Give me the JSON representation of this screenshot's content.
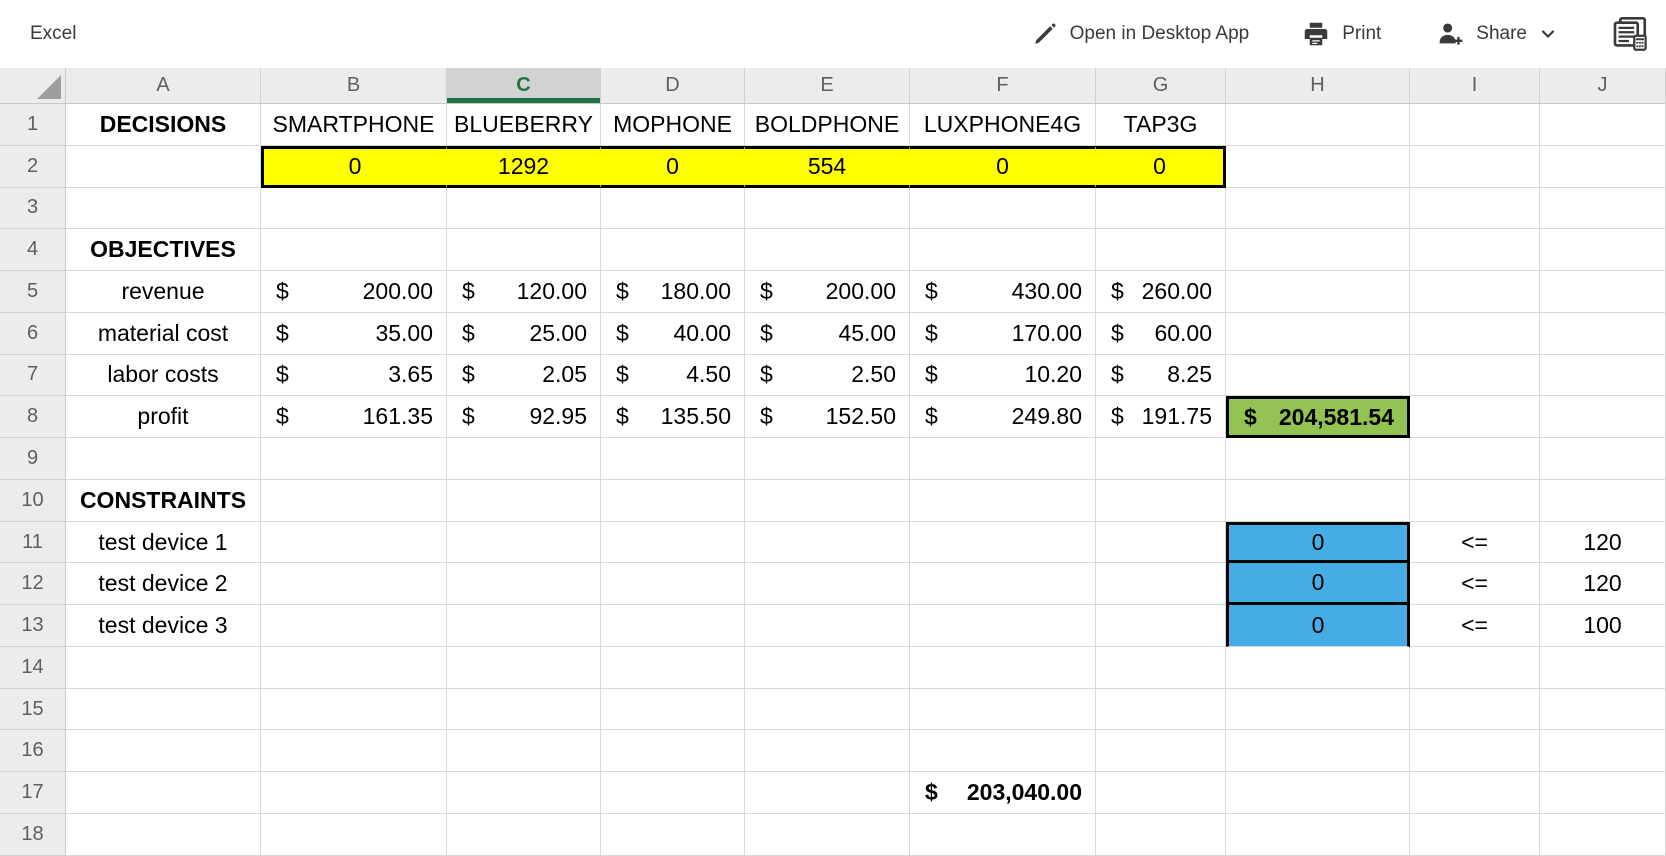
{
  "app": {
    "title": "Excel",
    "actions": {
      "open_desktop": "Open in Desktop App",
      "print": "Print",
      "share": "Share"
    }
  },
  "colors": {
    "yellow_fill": "#ffff00",
    "green_fill": "#92c353",
    "blue_fill": "#45ace5",
    "accent_green": "#217346",
    "grid_line": "#d9d9d9",
    "header_bg": "#ececec",
    "header_selected_bg": "#d2d2d2",
    "header_text": "#5f5f5f",
    "cell_text": "#000000",
    "topbar_text": "#3a3a3a"
  },
  "grid": {
    "column_headers": [
      "A",
      "B",
      "C",
      "D",
      "E",
      "F",
      "G",
      "H",
      "I",
      "J"
    ],
    "selected_column": "C",
    "row_headers": [
      "1",
      "2",
      "3",
      "4",
      "5",
      "6",
      "7",
      "8",
      "9",
      "10",
      "11",
      "12",
      "13",
      "14",
      "15",
      "16",
      "17",
      "18"
    ]
  },
  "sheet": {
    "currency_symbol": "$",
    "decisions_label": "DECISIONS",
    "phone_headers": [
      "SMARTPHONE",
      "BLUEBERRY",
      "MOPHONE",
      "BOLDPHONE",
      "LUXPHONE4G",
      "TAP3G"
    ],
    "decision_values": [
      "0",
      "1292",
      "0",
      "554",
      "0",
      "0"
    ],
    "objectives_label": "OBJECTIVES",
    "objective_rows": [
      {
        "label": "revenue",
        "values": [
          "200.00",
          "120.00",
          "180.00",
          "200.00",
          "430.00",
          "260.00"
        ]
      },
      {
        "label": "material cost",
        "values": [
          "35.00",
          "25.00",
          "40.00",
          "45.00",
          "170.00",
          "60.00"
        ]
      },
      {
        "label": "labor costs",
        "values": [
          "3.65",
          "2.05",
          "4.50",
          "2.50",
          "10.20",
          "8.25"
        ]
      },
      {
        "label": "profit",
        "values": [
          "161.35",
          "92.95",
          "135.50",
          "152.50",
          "249.80",
          "191.75"
        ]
      }
    ],
    "total_profit": "204,581.54",
    "constraints_label": "CONSTRAINTS",
    "constraints": [
      {
        "label": "test device 1",
        "used": "0",
        "op": "<=",
        "limit": "120"
      },
      {
        "label": "test device 2",
        "used": "0",
        "op": "<=",
        "limit": "120"
      },
      {
        "label": "test device 3",
        "used": "0",
        "op": "<=",
        "limit": "100"
      }
    ],
    "f17_value": "203,040.00"
  }
}
